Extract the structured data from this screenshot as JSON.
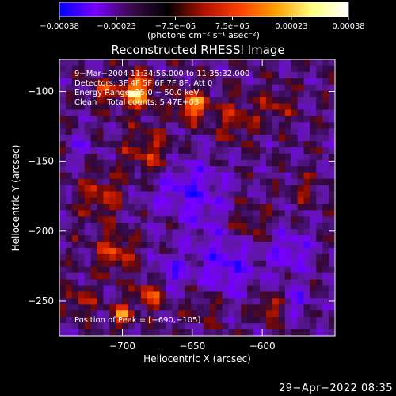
{
  "chart_data": {
    "type": "heatmap",
    "title": "Reconstructed RHESSI Image",
    "xlabel": "Heliocentric X (arcsec)",
    "ylabel": "Heliocentric Y (arcsec)",
    "xlim": [
      -745,
      -548
    ],
    "ylim": [
      -275,
      -77
    ],
    "x_ticks": [
      -700,
      -650,
      -600
    ],
    "x_tick_labels": [
      "−700",
      "−650",
      "−600"
    ],
    "y_ticks": [
      -100,
      -150,
      -200,
      -250
    ],
    "y_tick_labels": [
      "−100",
      "−150",
      "−200",
      "−250"
    ],
    "colorbar": {
      "range": [
        -0.00038,
        0.00038
      ],
      "tick_values": [
        -0.00038,
        -0.00023,
        -7.5e-05,
        7.5e-05,
        0.00023,
        0.00038
      ],
      "tick_labels": [
        "−0.00038",
        "−0.00023",
        "−7.5e−05",
        "7.5e−05",
        "0.00023",
        "0.00038"
      ],
      "unit_label": "(photons cm⁻² s⁻¹ asec⁻²)",
      "colors": [
        "#0000ff",
        "#7a00ff",
        "#3a0a4a",
        "#000000",
        "#b01000",
        "#ff4000",
        "#ffa000",
        "#ffff80",
        "#ffffff"
      ]
    },
    "annotations": [
      "9−Mar−2004 11:34:56.000 to 11:35:32.000",
      "Detectors: 3F 4F 5F 6F 7F 8F, Att 0",
      "Energy Range: 25.0 − 50.0 keV",
      "Clean    Total counts: 5.47E+03",
      "Position of Peak = [−690,−105]"
    ],
    "peak": {
      "x": -690,
      "y": -105
    },
    "grid": false
  },
  "footer": {
    "date": "29−Apr−2022 08:35"
  }
}
